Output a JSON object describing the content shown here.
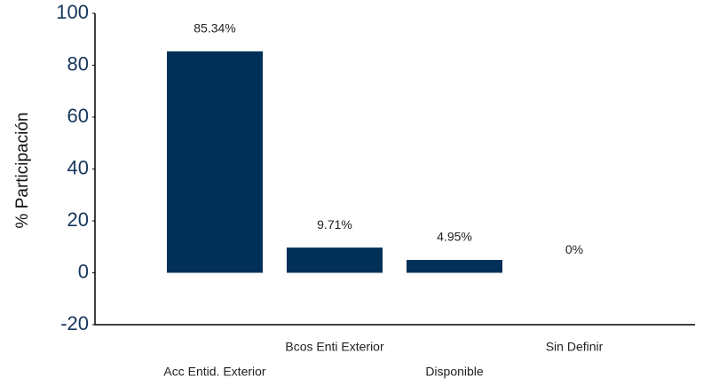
{
  "chart_data": {
    "type": "bar",
    "y_label": "% Participación",
    "categories": [
      "Acc Entid. Exterior",
      "Bcos Enti Exterior",
      "Disponible",
      "Sin Definir"
    ],
    "values": [
      85.34,
      9.71,
      4.95,
      0
    ],
    "value_labels": [
      "85.34%",
      "9.71%",
      "4.95%",
      "0%"
    ],
    "color": "#003057",
    "ylim": [
      -20,
      100
    ],
    "yticks": [
      -20,
      0,
      20,
      40,
      60,
      80,
      100
    ],
    "grid": false
  }
}
